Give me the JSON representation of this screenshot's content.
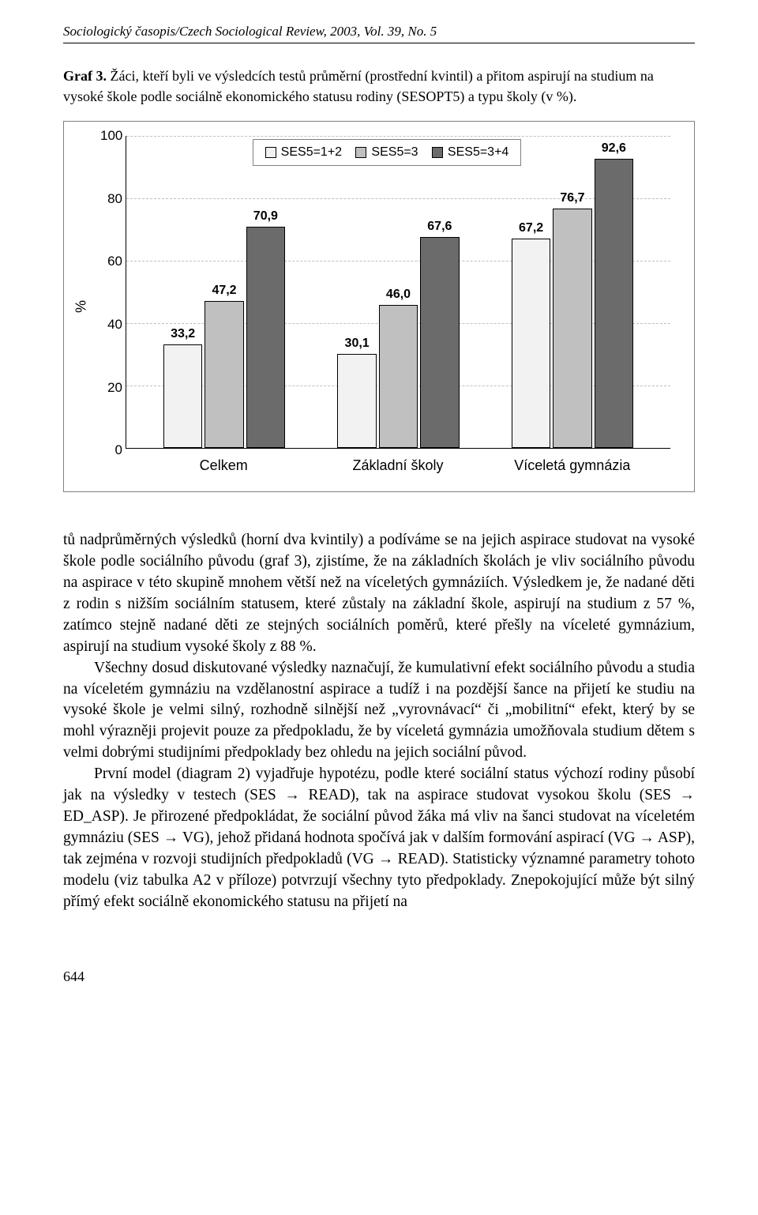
{
  "running_head": "Sociologický časopis/Czech Sociological Review, 2003, Vol. 39, No. 5",
  "figure": {
    "label": "Graf 3.",
    "caption": "Žáci, kteří byli ve výsledcích testů průměrní (prostřední kvintil) a přitom aspirují na studium na vysoké škole podle sociálně ekonomického statusu rodiny (SESOPT5) a typu školy (v %)."
  },
  "chart": {
    "type": "bar",
    "ylabel": "%",
    "ylim": [
      0,
      100
    ],
    "ytick_step": 20,
    "yticks": [
      0,
      20,
      40,
      60,
      80,
      100
    ],
    "grid_color": "#bfbfbf",
    "background_color": "#ffffff",
    "border_color": "#808080",
    "axis_color": "#000000",
    "font_family": "Arial",
    "tick_fontsize": 17,
    "label_fontsize": 16,
    "categories": [
      "Celkem",
      "Základní školy",
      "Víceletá gymnázia"
    ],
    "series": [
      {
        "name": "SES5=1+2",
        "color": "#f2f2f2",
        "values": [
          33.2,
          30.1,
          67.2
        ]
      },
      {
        "name": "SES5=3",
        "color": "#c0c0c0",
        "values": [
          47.2,
          46.0,
          76.7
        ]
      },
      {
        "name": "SES5=3+4",
        "color": "#6b6b6b",
        "values": [
          70.9,
          67.6,
          92.6
        ]
      }
    ],
    "value_labels": [
      [
        "33,2",
        "30,1",
        "67,2"
      ],
      [
        "47,2",
        "46,0",
        "76,7"
      ],
      [
        "70,9",
        "67,6",
        "92,6"
      ]
    ],
    "legend": {
      "border_color": "#808080",
      "background": "#ffffff"
    },
    "bar_border": "#000000",
    "group_positions_pct": [
      18,
      50,
      82
    ],
    "bar_width_pct": 7.2,
    "bar_gap_pct": 0.4
  },
  "paragraphs": [
    "tů nadprůměrných výsledků (horní dva kvintily) a podíváme se na jejich aspirace studovat na vysoké škole podle sociálního původu (graf 3), zjistíme, že na základních školách je vliv sociálního původu na aspirace v této skupině mnohem větší než na víceletých gymnáziích. Výsledkem je, že nadané děti z rodin s nižším sociálním statusem, které zůstaly na základní škole, aspirují na studium z 57 %, zatímco stejně nadané děti ze stejných sociálních poměrů, které přešly na víceleté gymnázium, aspirují na studium vysoké školy z 88 %.",
    "Všechny dosud diskutované výsledky naznačují, že kumulativní efekt sociálního původu a studia na víceletém gymnáziu na vzdělanostní aspirace a tudíž i na pozdější šance na přijetí ke studiu na vysoké škole je velmi silný, rozhodně silnější než „vyrovnávací“ či „mobilitní“ efekt, který by se mohl výrazněji projevit pouze za předpokladu, že by víceletá gymnázia umožňovala studium dětem s velmi dobrými studijními předpoklady bez ohledu na jejich sociální původ.",
    "První model (diagram 2) vyjadřuje hypotézu, podle které sociální status výchozí rodiny působí jak na výsledky v testech (SES → READ), tak na aspirace studovat vysokou školu (SES → ED_ASP). Je přirozené předpokládat, že sociální původ žáka má vliv na šanci studovat na víceletém gymnáziu (SES → VG), jehož přidaná hodnota spočívá jak v dalším formování aspirací (VG → ASP), tak zejména v rozvoji studijních předpokladů (VG → READ). Statisticky významné parametry tohoto modelu (viz tabulka A2 v příloze) potvrzují všechny tyto předpoklady. Znepokojující může být silný přímý efekt sociálně ekonomického statusu na přijetí na"
  ],
  "page_number": "644"
}
